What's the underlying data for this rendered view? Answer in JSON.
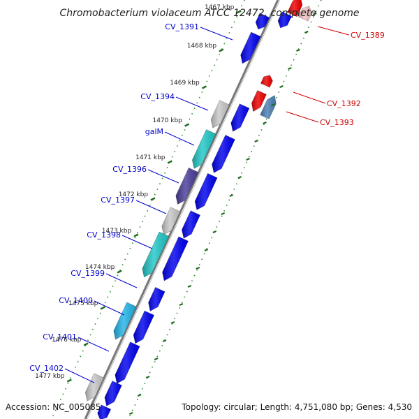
{
  "title": "Chromobacterium violaceum ATCC 12472, complete genome",
  "footer": {
    "accession": "Accession: NC_005085",
    "topology": "Topology: circular; Length: 4,751,080 bp; Genes: 4,530"
  },
  "colors": {
    "backbone": "#7a7a7a",
    "reverse_label": "#0000cc",
    "forward_label": "#cc0000",
    "tick_dots": "#2a8a2a",
    "kbp_tick": "#1f6b1f"
  },
  "ruler": {
    "kbp_labels": [
      "1467 kbp",
      "1468 kbp",
      "1469 kbp",
      "1470 kbp",
      "1471 kbp",
      "1472 kbp",
      "1473 kbp",
      "1474 kbp",
      "1475 kbp",
      "1476 kbp",
      "1477 kbp"
    ]
  },
  "reverse_genes": [
    {
      "label": "CV_1391",
      "color": "#0000ee"
    },
    {
      "label": "CV_1394",
      "color": "#c8c8c8"
    },
    {
      "label": "galM",
      "color": "#22c7c7"
    },
    {
      "label": "CV_1396",
      "color": "#4a3d9a"
    },
    {
      "label": "CV_1397",
      "color": "#c8c8c8"
    },
    {
      "label": "CV_1398",
      "color": "#22c7c7"
    },
    {
      "label": "CV_1399",
      "color": "#0000ee"
    },
    {
      "label": "CV_1400",
      "color": "#22b4e6"
    },
    {
      "label": "CV_1401",
      "color": "#0000ee"
    },
    {
      "label": "CV_1402",
      "color": "#c8c8c8"
    }
  ],
  "forward_genes": [
    {
      "label": "CV_1389",
      "color": "#ee0000"
    },
    {
      "label": "CV_1392",
      "color": "#ee0000"
    },
    {
      "label": "CV_1393",
      "color": "#4a7fb5"
    }
  ]
}
